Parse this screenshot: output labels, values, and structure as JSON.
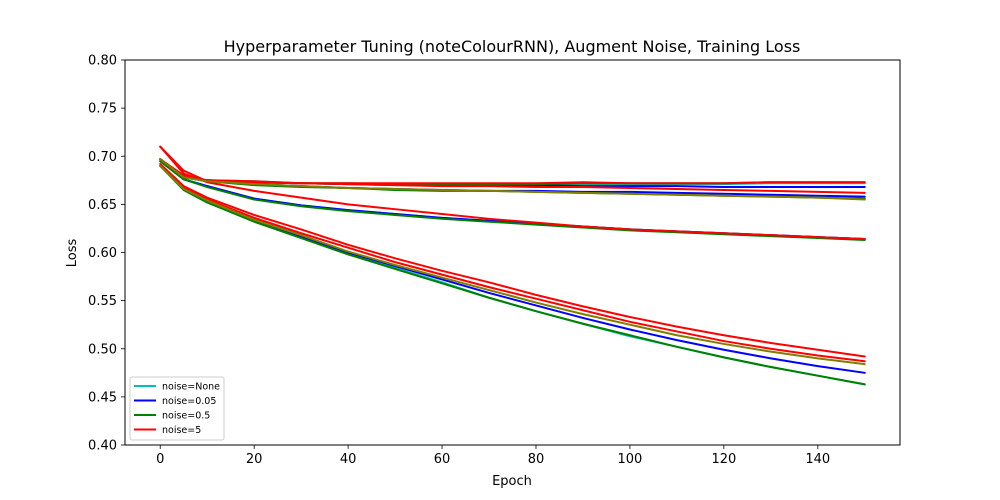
{
  "chart_data": {
    "type": "line",
    "title": "Hyperparameter Tuning (noteColourRNN), Augment Noise, Training Loss",
    "xlabel": "Epoch",
    "ylabel": "Loss",
    "xlim": [
      -7.5,
      157.5
    ],
    "ylim": [
      0.4,
      0.8
    ],
    "x_ticks": [
      "0",
      "20",
      "40",
      "60",
      "80",
      "100",
      "120",
      "140"
    ],
    "y_ticks": [
      "0.40",
      "0.45",
      "0.50",
      "0.55",
      "0.60",
      "0.65",
      "0.70",
      "0.75",
      "0.80"
    ],
    "grid": false,
    "legend_position": "lower-left",
    "x": [
      0,
      5,
      10,
      20,
      30,
      40,
      50,
      60,
      70,
      80,
      90,
      100,
      110,
      120,
      130,
      140,
      150
    ],
    "series": [
      {
        "name": "noise=None",
        "color": "#00bfbf",
        "runs": [
          [
            0.697,
            0.679,
            0.675,
            0.674,
            0.672,
            0.671,
            0.67,
            0.67,
            0.67,
            0.671,
            0.671,
            0.67,
            0.671,
            0.671,
            0.672,
            0.672,
            0.672
          ],
          [
            0.69,
            0.665,
            0.652,
            0.633,
            0.616,
            0.6,
            0.584,
            0.569,
            0.553,
            0.539,
            0.526,
            0.513,
            0.502,
            0.491,
            0.481,
            0.472,
            0.463
          ],
          [
            0.695,
            0.676,
            0.669,
            0.656,
            0.649,
            0.644,
            0.64,
            0.636,
            0.633,
            0.63,
            0.627,
            0.624,
            0.622,
            0.62,
            0.618,
            0.616,
            0.614
          ]
        ]
      },
      {
        "name": "noise=0.05",
        "color": "#0000ff",
        "runs": [
          [
            0.697,
            0.679,
            0.675,
            0.673,
            0.672,
            0.671,
            0.671,
            0.67,
            0.67,
            0.67,
            0.669,
            0.669,
            0.669,
            0.668,
            0.668,
            0.668,
            0.668
          ],
          [
            0.69,
            0.666,
            0.653,
            0.634,
            0.617,
            0.6,
            0.586,
            0.572,
            0.558,
            0.545,
            0.532,
            0.52,
            0.509,
            0.499,
            0.49,
            0.482,
            0.475
          ],
          [
            0.695,
            0.676,
            0.669,
            0.656,
            0.649,
            0.644,
            0.64,
            0.636,
            0.633,
            0.63,
            0.627,
            0.624,
            0.622,
            0.62,
            0.618,
            0.616,
            0.614
          ],
          [
            0.697,
            0.678,
            0.675,
            0.671,
            0.669,
            0.667,
            0.666,
            0.665,
            0.664,
            0.664,
            0.663,
            0.663,
            0.662,
            0.661,
            0.66,
            0.659,
            0.658
          ]
        ]
      },
      {
        "name": "noise=0.5",
        "color": "#008000",
        "runs": [
          [
            0.697,
            0.679,
            0.675,
            0.673,
            0.672,
            0.672,
            0.671,
            0.671,
            0.671,
            0.671,
            0.672,
            0.672,
            0.672,
            0.672,
            0.673,
            0.673,
            0.673
          ],
          [
            0.69,
            0.665,
            0.652,
            0.632,
            0.615,
            0.598,
            0.583,
            0.568,
            0.553,
            0.539,
            0.526,
            0.514,
            0.502,
            0.491,
            0.481,
            0.472,
            0.463
          ],
          [
            0.695,
            0.676,
            0.668,
            0.655,
            0.648,
            0.643,
            0.639,
            0.635,
            0.632,
            0.629,
            0.626,
            0.623,
            0.621,
            0.619,
            0.617,
            0.615,
            0.613
          ],
          [
            0.697,
            0.678,
            0.674,
            0.67,
            0.668,
            0.667,
            0.665,
            0.664,
            0.664,
            0.663,
            0.662,
            0.661,
            0.66,
            0.659,
            0.658,
            0.657,
            0.656
          ]
        ]
      },
      {
        "name": "noise=5",
        "color": "#ff0000",
        "runs": [
          [
            0.697,
            0.68,
            0.675,
            0.674,
            0.672,
            0.672,
            0.672,
            0.672,
            0.672,
            0.672,
            0.673,
            0.672,
            0.672,
            0.672,
            0.673,
            0.673,
            0.673
          ],
          [
            0.71,
            0.685,
            0.674,
            0.673,
            0.672,
            0.671,
            0.67,
            0.669,
            0.669,
            0.668,
            0.668,
            0.667,
            0.666,
            0.665,
            0.664,
            0.663,
            0.662
          ],
          [
            0.71,
            0.682,
            0.673,
            0.664,
            0.657,
            0.65,
            0.645,
            0.64,
            0.635,
            0.631,
            0.627,
            0.624,
            0.622,
            0.62,
            0.618,
            0.616,
            0.614
          ],
          [
            0.69,
            0.667,
            0.655,
            0.636,
            0.62,
            0.605,
            0.59,
            0.577,
            0.564,
            0.552,
            0.54,
            0.528,
            0.518,
            0.508,
            0.5,
            0.493,
            0.487
          ],
          [
            0.692,
            0.669,
            0.657,
            0.639,
            0.624,
            0.608,
            0.594,
            0.581,
            0.569,
            0.556,
            0.544,
            0.533,
            0.523,
            0.514,
            0.506,
            0.499,
            0.492
          ]
        ]
      },
      {
        "name": "",
        "color": "#7f7f00",
        "runs": [
          [
            0.69,
            0.666,
            0.654,
            0.634,
            0.618,
            0.601,
            0.587,
            0.574,
            0.561,
            0.548,
            0.536,
            0.525,
            0.514,
            0.505,
            0.497,
            0.49,
            0.484
          ],
          [
            0.697,
            0.678,
            0.674,
            0.671,
            0.669,
            0.667,
            0.666,
            0.665,
            0.664,
            0.663,
            0.662,
            0.661,
            0.66,
            0.659,
            0.658,
            0.657,
            0.655
          ]
        ]
      }
    ]
  }
}
